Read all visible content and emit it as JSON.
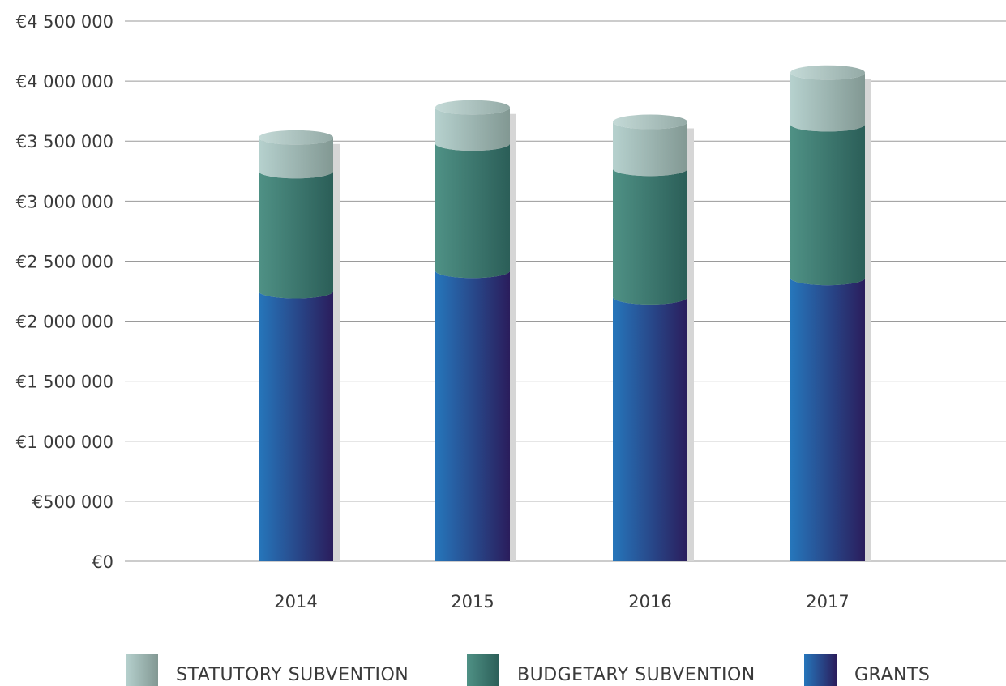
{
  "chart_data": {
    "type": "bar",
    "stacked": true,
    "style": "3d-cylinder",
    "categories": [
      "2014",
      "2015",
      "2016",
      "2017"
    ],
    "series": [
      {
        "name": "GRANTS",
        "values": [
          2250000,
          2420000,
          2200000,
          2360000
        ]
      },
      {
        "name": "BUDGETARY SUBVENTION",
        "values": [
          1000000,
          1060000,
          1070000,
          1280000
        ]
      },
      {
        "name": "STATUTORY SUBVENTION",
        "values": [
          280000,
          300000,
          390000,
          430000
        ]
      }
    ],
    "y_ticks": [
      "€0",
      "€500 000",
      "€1 000 000",
      "€1 500 000",
      "€2 000 000",
      "€2 500 000",
      "€3 000 000",
      "€3 500 000",
      "€4 000 000",
      "€4 500 000"
    ],
    "ylim": [
      0,
      4500000
    ],
    "grid": true,
    "legend_position": "bottom",
    "colors": {
      "grants": [
        "#2676bb",
        "#2a1d5c"
      ],
      "budgetary": [
        "#4f9185",
        "#2b5e58"
      ],
      "statutory": [
        "#b6d1ce",
        "#829893"
      ]
    }
  }
}
